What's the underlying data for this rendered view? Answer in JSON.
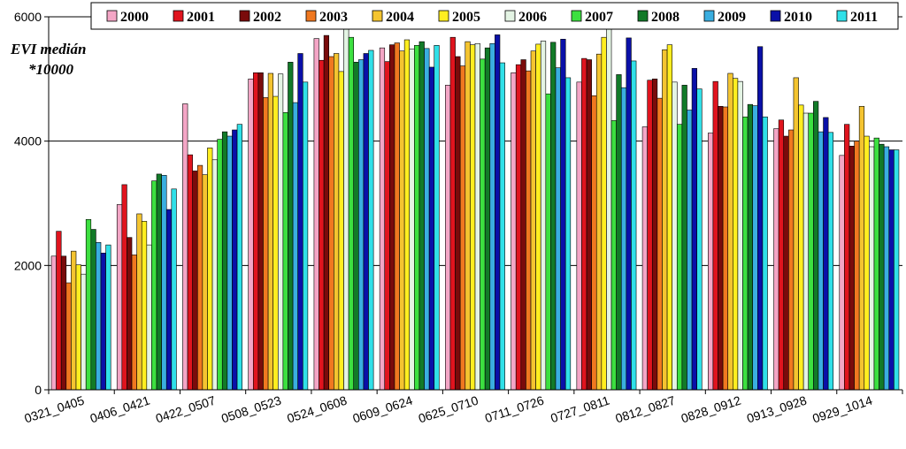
{
  "chart_data": {
    "type": "bar",
    "title": "",
    "ylabel_line1": "EVI medián",
    "ylabel_line2": "*10000",
    "xlabel": "",
    "ylim": [
      0,
      6000
    ],
    "yticks": [
      "0",
      "2000",
      "4000",
      "6000"
    ],
    "grid": true,
    "legend_position": "top",
    "categories": [
      "0321_0405",
      "0406_0421",
      "0422_0507",
      "0508_0523",
      "0524_0608",
      "0609_0624",
      "0625_0710",
      "0711_0726",
      "0727_0811",
      "0812_0827",
      "0828_0912",
      "0913_0928",
      "0929_1014"
    ],
    "series": [
      {
        "name": "2000",
        "color": "#f4a6c6",
        "values": [
          2150,
          2980,
          4600,
          5000,
          5650,
          5500,
          4900,
          5100,
          4950,
          4230,
          4130,
          4200,
          3770
        ]
      },
      {
        "name": "2001",
        "color": "#e0141e",
        "values": [
          2550,
          3300,
          3780,
          5100,
          5300,
          5280,
          5670,
          5230,
          5330,
          4980,
          4960,
          4340,
          4270
        ]
      },
      {
        "name": "2002",
        "color": "#7a0b0b",
        "values": [
          2150,
          2450,
          3520,
          5100,
          5700,
          5550,
          5360,
          5310,
          5310,
          5000,
          4560,
          4080,
          3920
        ]
      },
      {
        "name": "2003",
        "color": "#f07820",
        "values": [
          1720,
          2170,
          3610,
          4700,
          5360,
          5580,
          5210,
          5130,
          4730,
          4690,
          4550,
          4180,
          4000
        ]
      },
      {
        "name": "2004",
        "color": "#f4c430",
        "values": [
          2230,
          2830,
          3460,
          5090,
          5410,
          5450,
          5600,
          5450,
          5400,
          5470,
          5090,
          5020,
          4560
        ]
      },
      {
        "name": "2005",
        "color": "#ffee20",
        "values": [
          2010,
          2710,
          3890,
          4720,
          5120,
          5630,
          5550,
          5560,
          5670,
          5550,
          5010,
          4580,
          4080
        ]
      },
      {
        "name": "2006",
        "color": "#e4f4e4",
        "values": [
          1860,
          2330,
          3700,
          5080,
          5960,
          5480,
          5570,
          5610,
          5960,
          4950,
          4960,
          4450,
          3910
        ]
      },
      {
        "name": "2007",
        "color": "#3ce040",
        "values": [
          2740,
          3360,
          4030,
          4460,
          5670,
          5540,
          5320,
          4760,
          4330,
          4270,
          4390,
          4450,
          4050
        ]
      },
      {
        "name": "2008",
        "color": "#127a28",
        "values": [
          2580,
          3470,
          4150,
          5270,
          5270,
          5600,
          5500,
          5590,
          5070,
          4900,
          4590,
          4640,
          3950
        ]
      },
      {
        "name": "2009",
        "color": "#3aaee0",
        "values": [
          2370,
          3450,
          4080,
          4620,
          5310,
          5490,
          5570,
          5180,
          4860,
          4500,
          4570,
          4150,
          3910
        ]
      },
      {
        "name": "2010",
        "color": "#0a10a8",
        "values": [
          2200,
          2900,
          4180,
          5410,
          5410,
          5190,
          5710,
          5640,
          5660,
          5170,
          5520,
          4380,
          3860
        ]
      },
      {
        "name": "2011",
        "color": "#30e0e8",
        "values": [
          2330,
          3230,
          4270,
          4950,
          5460,
          5540,
          5260,
          5020,
          5290,
          4840,
          4390,
          4140,
          3860
        ]
      }
    ]
  }
}
